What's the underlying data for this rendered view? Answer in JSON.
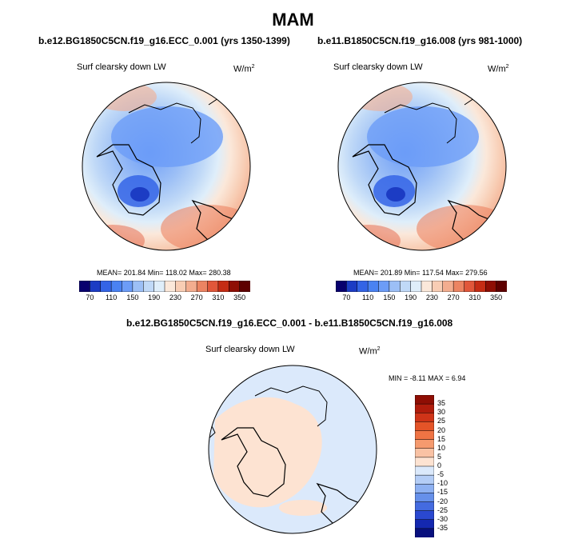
{
  "season": "MAM",
  "panels": [
    {
      "title": "b.e12.BG1850C5CN.f19_g16.ECC_0.001 (yrs 1350-1399)",
      "variable": "Surf clearsky down LW",
      "units": "W/m",
      "units_sup": "2",
      "stats": "MEAN= 201.84  Min= 118.02  Max= 280.38"
    },
    {
      "title": "b.e11.B1850C5CN.f19_g16.008 (yrs 981-1000)",
      "variable": "Surf clearsky down LW",
      "units": "W/m",
      "units_sup": "2",
      "stats": "MEAN= 201.89  Min= 117.54  Max= 279.56"
    },
    {
      "title": "b.e12.BG1850C5CN.f19_g16.ECC_0.001 - b.e11.B1850C5CN.f19_g16.008",
      "variable": "Surf clearsky down LW",
      "units": "W/m",
      "units_sup": "2",
      "stats": "MIN =  -8.11 MAX =   6.94"
    }
  ],
  "chart_data": [
    {
      "type": "heatmap",
      "projection": "north polar stereographic",
      "title": "b.e12.BG1850C5CN.f19_g16.ECC_0.001 (yrs 1350-1399)",
      "variable": "Surf clearsky down LW",
      "units": "W/m2",
      "mean": 201.84,
      "min": 118.02,
      "max": 280.38,
      "colorbar": {
        "orientation": "horizontal",
        "levels": [
          70,
          90,
          110,
          130,
          150,
          170,
          190,
          210,
          230,
          250,
          270,
          290,
          310,
          330,
          350
        ],
        "tick_labels": [
          "70",
          "110",
          "150",
          "190",
          "230",
          "270",
          "310",
          "350"
        ],
        "colors": [
          "#08006e",
          "#1c3cc4",
          "#3464e6",
          "#4a82f2",
          "#6c9cf7",
          "#9cbff6",
          "#c0d9f7",
          "#dfeefa",
          "#fbe8da",
          "#f8cdb4",
          "#f3ad8f",
          "#ec8462",
          "#e1573a",
          "#c52c14",
          "#8f0e04",
          "#5e0000"
        ]
      }
    },
    {
      "type": "heatmap",
      "projection": "north polar stereographic",
      "title": "b.e11.B1850C5CN.f19_g16.008 (yrs 981-1000)",
      "variable": "Surf clearsky down LW",
      "units": "W/m2",
      "mean": 201.89,
      "min": 117.54,
      "max": 279.56,
      "colorbar": {
        "orientation": "horizontal",
        "levels": [
          70,
          90,
          110,
          130,
          150,
          170,
          190,
          210,
          230,
          250,
          270,
          290,
          310,
          330,
          350
        ],
        "tick_labels": [
          "70",
          "110",
          "150",
          "190",
          "230",
          "270",
          "310",
          "350"
        ],
        "colors": [
          "#08006e",
          "#1c3cc4",
          "#3464e6",
          "#4a82f2",
          "#6c9cf7",
          "#9cbff6",
          "#c0d9f7",
          "#dfeefa",
          "#fbe8da",
          "#f8cdb4",
          "#f3ad8f",
          "#ec8462",
          "#e1573a",
          "#c52c14",
          "#8f0e04",
          "#5e0000"
        ]
      }
    },
    {
      "type": "heatmap",
      "projection": "north polar stereographic",
      "title": "b.e12.BG1850C5CN.f19_g16.ECC_0.001 - b.e11.B1850C5CN.f19_g16.008",
      "variable": "Surf clearsky down LW",
      "units": "W/m2",
      "min": -8.11,
      "max": 6.94,
      "colorbar": {
        "orientation": "vertical",
        "tick_labels": [
          "35",
          "30",
          "25",
          "20",
          "15",
          "10",
          "5",
          "0",
          "-5",
          "-10",
          "-15",
          "-20",
          "-25",
          "-30",
          "-35"
        ],
        "colors": [
          "#8f0e04",
          "#b01c0c",
          "#cf3418",
          "#e45428",
          "#ef7444",
          "#f59a6e",
          "#f9c2a4",
          "#fde3d2",
          "#dbe9fb",
          "#b4cdf6",
          "#8eb1f2",
          "#6690ea",
          "#446be0",
          "#2a48d0",
          "#1428b0",
          "#08107e"
        ]
      }
    }
  ]
}
